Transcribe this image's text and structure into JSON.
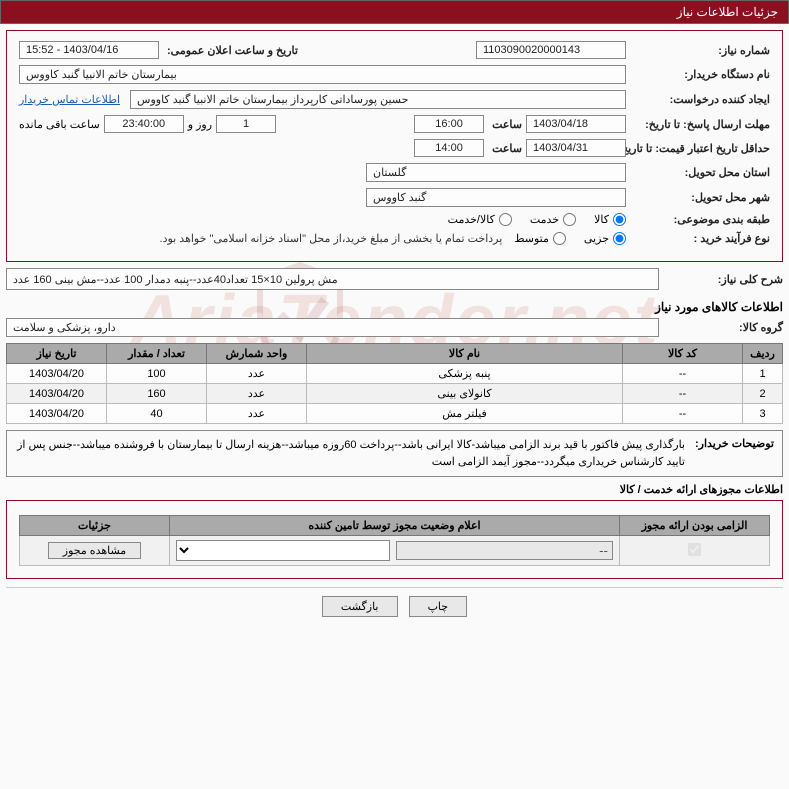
{
  "header": {
    "title": "جزئیات اطلاعات نیاز"
  },
  "fields": {
    "need_no_label": "شماره نیاز:",
    "need_no": "1103090020000143",
    "announce_label": "تاریخ و ساعت اعلان عمومی:",
    "announce_value": "1403/04/16 - 15:52",
    "buyer_org_label": "نام دستگاه خریدار:",
    "buyer_org": "بیمارستان خاتم الانبیا گنبد کاووس",
    "requester_label": "ایجاد کننده درخواست:",
    "requester": "حسین پورساداتی کارپرداز بیمارستان خاتم الانبیا گنبد کاووس",
    "contact_link": "اطلاعات تماس خریدار",
    "reply_deadline_label": "مهلت ارسال پاسخ: تا تاریخ:",
    "reply_date": "1403/04/18",
    "hour_label": "ساعت",
    "reply_hour": "16:00",
    "days_count": "1",
    "days_word": "روز و",
    "remain_time": "23:40:00",
    "remain_suffix": "ساعت باقی مانده",
    "validity_label": "حداقل تاریخ اعتبار قیمت: تا تاریخ:",
    "validity_date": "1403/04/31",
    "validity_hour": "14:00",
    "province_label": "استان محل تحویل:",
    "province": "گلستان",
    "city_label": "شهر محل تحویل:",
    "city": "گنبد کاووس",
    "topic_label": "طبقه بندی موضوعی:",
    "radio_goods": "کالا",
    "radio_service": "خدمت",
    "radio_both": "کالا/خدمت",
    "process_label": "نوع فرآیند خرید :",
    "radio_partial": "جزیی",
    "radio_medium": "متوسط",
    "process_note": "پرداخت تمام یا بخشی از مبلغ خرید،از محل \"اسناد خزانه اسلامی\" خواهد بود.",
    "general_desc_label": "شرح کلی نیاز:",
    "general_desc": "مش پرولین 10×15 تعداد40عدد--پنبه دمدار 100 عدد--مش بینی 160 عدد",
    "goods_info_title": "اطلاعات کالاهای مورد نیاز",
    "goods_group_label": "گروه کالا:",
    "goods_group": "دارو، پزشکی و سلامت",
    "buyer_notes_label": "توضیحات خریدار:",
    "buyer_notes": "بارگذاری پیش فاکتور با قید برند الزامی میباشد-کالا ایرانی باشد--پرداخت 60روزه میباشد--هزینه ارسال تا بیمارستان با فروشنده میباشد--جنس پس از تایید کارشناس خریداری میگردد--مجوز آیمد الزامی است"
  },
  "table": {
    "headers": {
      "row": "ردیف",
      "code": "کد کالا",
      "name": "نام کالا",
      "unit": "واحد شمارش",
      "qty": "تعداد / مقدار",
      "date": "تاریخ نیاز"
    },
    "rows": [
      {
        "n": "1",
        "code": "--",
        "name": "پنبه پزشکی",
        "unit": "عدد",
        "qty": "100",
        "date": "1403/04/20"
      },
      {
        "n": "2",
        "code": "--",
        "name": "کانولای بینی",
        "unit": "عدد",
        "qty": "160",
        "date": "1403/04/20"
      },
      {
        "n": "3",
        "code": "--",
        "name": "فیلتر مش",
        "unit": "عدد",
        "qty": "40",
        "date": "1403/04/20"
      }
    ]
  },
  "license": {
    "section_title": "اطلاعات مجوزهای ارائه خدمت / کالا",
    "headers": {
      "mandatory": "الزامی بودن ارائه مجوز",
      "status": "اعلام وضعیت مجوز توسط تامین کننده",
      "details": "جزئیات"
    },
    "view_btn": "مشاهده مجوز",
    "placeholder_dash": "--"
  },
  "footer": {
    "print": "چاپ",
    "back": "بازگشت"
  },
  "colors": {
    "brand": "#8b0f1f",
    "header_bg": "#aaa",
    "border": "#888"
  }
}
